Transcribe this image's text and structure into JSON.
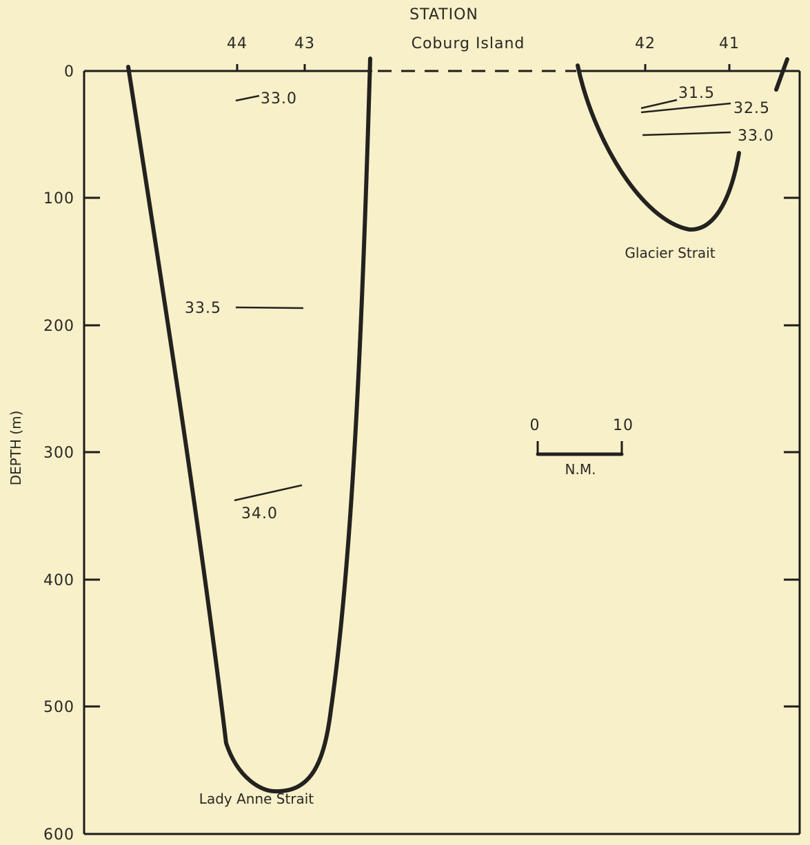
{
  "chart_data": {
    "type": "line",
    "title": "",
    "xlabel": "STATION",
    "ylabel": "DEPTH (m)",
    "ylim": [
      0,
      600
    ],
    "y_ticks": [
      "0",
      "100",
      "200",
      "300",
      "400",
      "500",
      "600"
    ],
    "y_tick_values": [
      0,
      100,
      200,
      300,
      400,
      500,
      600
    ],
    "station_labels": [
      {
        "id": "st44",
        "label": "44"
      },
      {
        "id": "st43",
        "label": "43"
      },
      {
        "id": "coburg",
        "label": "Coburg Island"
      },
      {
        "id": "st42",
        "label": "42"
      },
      {
        "id": "st41",
        "label": "41"
      }
    ],
    "straits": [
      {
        "name": "Lady Anne Strait",
        "max_depth": 557
      },
      {
        "name": "Glacier Strait",
        "max_depth": 127
      }
    ],
    "isohalines": [
      {
        "label": "33.0",
        "strait": "Lady Anne Strait",
        "depth": 22
      },
      {
        "label": "33.5",
        "strait": "Lady Anne Strait",
        "depth": 190
      },
      {
        "label": "34.0",
        "strait": "Lady Anne Strait",
        "depth": 333
      },
      {
        "label": "31.5",
        "strait": "Glacier Strait",
        "depth": 28
      },
      {
        "label": "32.5",
        "strait": "Glacier Strait",
        "depth": 26
      },
      {
        "label": "33.0",
        "strait": "Glacier Strait",
        "depth": 50
      }
    ],
    "scale_bar": {
      "start_label": "0",
      "end_label": "10",
      "unit": "N.M."
    }
  }
}
